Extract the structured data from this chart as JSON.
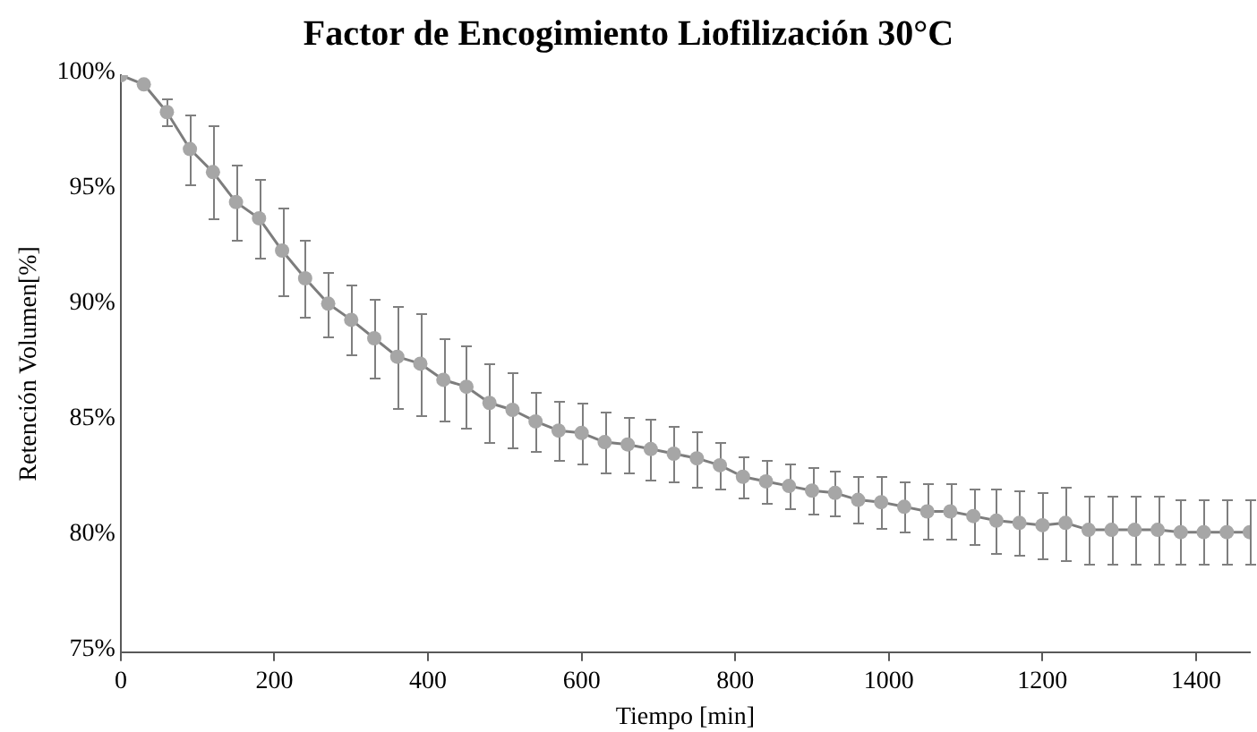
{
  "chart_data": {
    "type": "line",
    "title": "Factor de Encogimiento Liofilización 30°C",
    "xlabel": "Tiempo [min]",
    "ylabel": "Retención Volumen[%]",
    "x": [
      0,
      30,
      60,
      90,
      120,
      150,
      180,
      210,
      240,
      270,
      300,
      330,
      360,
      390,
      420,
      450,
      480,
      510,
      540,
      570,
      600,
      630,
      660,
      690,
      720,
      750,
      780,
      810,
      840,
      870,
      900,
      930,
      960,
      990,
      1020,
      1050,
      1080,
      1110,
      1140,
      1170,
      1200,
      1230,
      1260,
      1290,
      1320,
      1350,
      1380,
      1410,
      1440,
      1470
    ],
    "series": [
      {
        "color": "#a6a6a6",
        "values": [
          100,
          99.6,
          98.4,
          96.8,
          95.8,
          94.5,
          93.8,
          92.4,
          91.2,
          90.1,
          89.4,
          88.6,
          87.8,
          87.5,
          86.8,
          86.5,
          85.8,
          85.5,
          85.0,
          84.6,
          84.5,
          84.1,
          84.0,
          83.8,
          83.6,
          83.4,
          83.1,
          82.6,
          82.4,
          82.2,
          82.0,
          81.9,
          81.6,
          81.5,
          81.3,
          81.1,
          81.1,
          80.9,
          80.7,
          80.6,
          80.5,
          80.6,
          80.3,
          80.3,
          80.3,
          80.3,
          80.2,
          80.2,
          80.2,
          80.2
        ],
        "errors": [
          null,
          null,
          0.6,
          1.5,
          2.0,
          1.6,
          1.7,
          1.9,
          1.7,
          1.4,
          1.5,
          1.7,
          2.2,
          2.2,
          1.8,
          1.8,
          1.7,
          1.6,
          1.3,
          1.3,
          1.3,
          1.3,
          1.2,
          1.3,
          1.2,
          1.2,
          1.0,
          0.9,
          0.9,
          1.0,
          1.0,
          1.0,
          1.0,
          1.1,
          1.1,
          1.2,
          1.2,
          1.2,
          1.4,
          1.4,
          1.4,
          1.6,
          1.5,
          1.5,
          1.5,
          1.5,
          1.4,
          1.4,
          1.4,
          1.4
        ]
      }
    ],
    "xlim": [
      0,
      1470
    ],
    "xticks": [
      0,
      200,
      400,
      600,
      800,
      1000,
      1200,
      1400
    ],
    "ylim": [
      75,
      100
    ],
    "yticks": [
      {
        "value": 75,
        "label": "75%"
      },
      {
        "value": 80,
        "label": "80%"
      },
      {
        "value": 85,
        "label": "85%"
      },
      {
        "value": 90,
        "label": "90%"
      },
      {
        "value": 95,
        "label": "95%"
      },
      {
        "value": 100,
        "label": "100%"
      }
    ],
    "marker": "circle",
    "grid": false,
    "legend": false
  }
}
